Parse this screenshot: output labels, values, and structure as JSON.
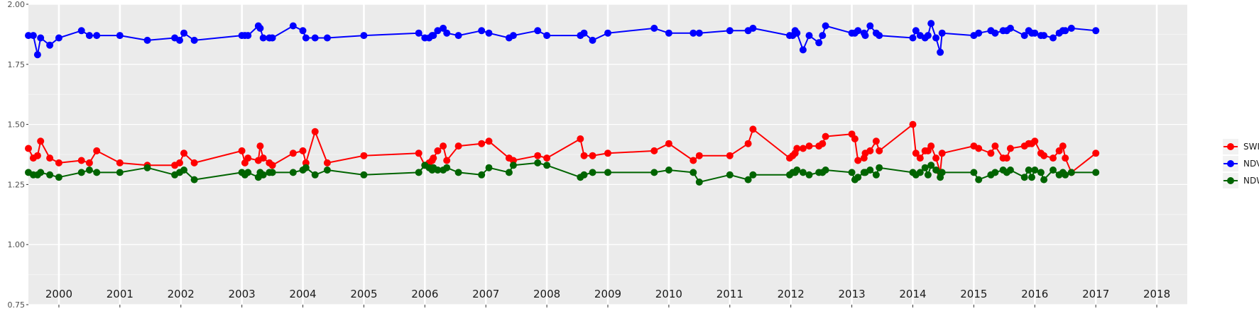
{
  "chart_data": {
    "type": "line",
    "title": "",
    "xlabel": "",
    "ylabel": "",
    "xlim": [
      1999.5,
      2018.5
    ],
    "ylim": [
      0.75,
      2.0
    ],
    "yticks": [
      0.75,
      1.0,
      1.25,
      1.5,
      1.75,
      2.0
    ],
    "ytick_labels": [
      "0.75",
      "1.00",
      "1.25",
      "1.50",
      "1.75",
      "2.00"
    ],
    "year_labels": [
      "2000",
      "2001",
      "2002",
      "2003",
      "2004",
      "2005",
      "2006",
      "2007",
      "2008",
      "2009",
      "2010",
      "2011",
      "2012",
      "2013",
      "2014",
      "2015",
      "2016",
      "2017",
      "2018"
    ],
    "grid": true,
    "legend_position": "right",
    "series": [
      {
        "name": "SWIR",
        "color": "#ff0000",
        "x": [
          1999.5,
          1999.58,
          1999.65,
          1999.7,
          1999.85,
          2000.0,
          2000.37,
          2000.5,
          2000.62,
          2001.0,
          2001.45,
          2001.9,
          2001.98,
          2002.05,
          2002.22,
          2003.0,
          2003.05,
          2003.1,
          2003.27,
          2003.3,
          2003.35,
          2003.45,
          2003.5,
          2003.84,
          2004.0,
          2004.05,
          2004.2,
          2004.4,
          2005.0,
          2005.9,
          2006.0,
          2006.07,
          2006.12,
          2006.14,
          2006.21,
          2006.3,
          2006.36,
          2006.55,
          2006.93,
          2007.05,
          2007.38,
          2007.45,
          2007.85,
          2008.0,
          2008.55,
          2008.61,
          2008.75,
          2009.0,
          2009.76,
          2010.0,
          2010.4,
          2010.5,
          2011.0,
          2011.3,
          2011.38,
          2011.98,
          2012.03,
          2012.07,
          2012.1,
          2012.2,
          2012.3,
          2012.46,
          2012.52,
          2012.57,
          2013.0,
          2013.05,
          2013.1,
          2013.2,
          2013.22,
          2013.3,
          2013.4,
          2013.45,
          2014.0,
          2014.05,
          2014.12,
          2014.2,
          2014.25,
          2014.3,
          2014.38,
          2014.45,
          2014.48,
          2015.0,
          2015.08,
          2015.28,
          2015.35,
          2015.48,
          2015.54,
          2015.6,
          2015.83,
          2015.9,
          2015.95,
          2016.0,
          2016.1,
          2016.15,
          2016.3,
          2016.4,
          2016.46,
          2016.5,
          2016.6,
          2017.0
        ],
        "values": [
          1.4,
          1.36,
          1.37,
          1.43,
          1.36,
          1.34,
          1.35,
          1.34,
          1.39,
          1.34,
          1.33,
          1.33,
          1.34,
          1.38,
          1.34,
          1.39,
          1.34,
          1.36,
          1.35,
          1.41,
          1.36,
          1.34,
          1.33,
          1.38,
          1.39,
          1.34,
          1.47,
          1.34,
          1.37,
          1.38,
          1.33,
          1.34,
          1.35,
          1.36,
          1.39,
          1.41,
          1.35,
          1.41,
          1.42,
          1.43,
          1.36,
          1.35,
          1.37,
          1.36,
          1.44,
          1.37,
          1.37,
          1.38,
          1.39,
          1.42,
          1.35,
          1.37,
          1.37,
          1.42,
          1.48,
          1.36,
          1.37,
          1.38,
          1.4,
          1.4,
          1.41,
          1.41,
          1.42,
          1.45,
          1.46,
          1.44,
          1.35,
          1.36,
          1.38,
          1.39,
          1.43,
          1.39,
          1.5,
          1.38,
          1.36,
          1.39,
          1.39,
          1.41,
          1.36,
          1.3,
          1.38,
          1.41,
          1.4,
          1.38,
          1.41,
          1.36,
          1.36,
          1.4,
          1.41,
          1.42,
          1.42,
          1.43,
          1.38,
          1.37,
          1.36,
          1.39,
          1.41,
          1.36,
          1.3,
          1.38
        ]
      },
      {
        "name": "NDVI",
        "color": "#0000ff",
        "x": [
          1999.5,
          1999.58,
          1999.65,
          1999.7,
          1999.85,
          2000.0,
          2000.37,
          2000.5,
          2000.62,
          2001.0,
          2001.45,
          2001.9,
          2001.98,
          2002.05,
          2002.22,
          2003.0,
          2003.05,
          2003.1,
          2003.27,
          2003.3,
          2003.35,
          2003.45,
          2003.5,
          2003.84,
          2004.0,
          2004.05,
          2004.2,
          2004.4,
          2005.0,
          2005.9,
          2006.0,
          2006.07,
          2006.12,
          2006.14,
          2006.21,
          2006.3,
          2006.36,
          2006.55,
          2006.93,
          2007.05,
          2007.38,
          2007.45,
          2007.85,
          2008.0,
          2008.55,
          2008.61,
          2008.75,
          2009.0,
          2009.76,
          2010.0,
          2010.4,
          2010.5,
          2011.0,
          2011.3,
          2011.38,
          2011.98,
          2012.03,
          2012.07,
          2012.1,
          2012.2,
          2012.3,
          2012.46,
          2012.52,
          2012.57,
          2013.0,
          2013.05,
          2013.1,
          2013.2,
          2013.22,
          2013.3,
          2013.4,
          2013.45,
          2014.0,
          2014.05,
          2014.12,
          2014.2,
          2014.25,
          2014.3,
          2014.38,
          2014.45,
          2014.48,
          2015.0,
          2015.08,
          2015.28,
          2015.35,
          2015.48,
          2015.54,
          2015.6,
          2015.83,
          2015.9,
          2015.95,
          2016.0,
          2016.1,
          2016.15,
          2016.3,
          2016.4,
          2016.46,
          2016.5,
          2016.6,
          2017.0
        ],
        "values": [
          1.87,
          1.87,
          1.79,
          1.86,
          1.83,
          1.86,
          1.89,
          1.87,
          1.87,
          1.87,
          1.85,
          1.86,
          1.85,
          1.88,
          1.85,
          1.87,
          1.87,
          1.87,
          1.91,
          1.9,
          1.86,
          1.86,
          1.86,
          1.91,
          1.89,
          1.86,
          1.86,
          1.86,
          1.87,
          1.88,
          1.86,
          1.86,
          1.87,
          1.87,
          1.89,
          1.9,
          1.88,
          1.87,
          1.89,
          1.88,
          1.86,
          1.87,
          1.89,
          1.87,
          1.87,
          1.88,
          1.85,
          1.88,
          1.9,
          1.88,
          1.88,
          1.88,
          1.89,
          1.89,
          1.9,
          1.87,
          1.87,
          1.89,
          1.88,
          1.81,
          1.87,
          1.84,
          1.87,
          1.91,
          1.88,
          1.88,
          1.89,
          1.88,
          1.87,
          1.91,
          1.88,
          1.87,
          1.86,
          1.89,
          1.87,
          1.86,
          1.87,
          1.92,
          1.86,
          1.8,
          1.88,
          1.87,
          1.88,
          1.89,
          1.88,
          1.89,
          1.89,
          1.9,
          1.87,
          1.89,
          1.88,
          1.88,
          1.87,
          1.87,
          1.86,
          1.88,
          1.89,
          1.89,
          1.9,
          1.89
        ]
      },
      {
        "name": "NDWI",
        "color": "#006400",
        "x": [
          1999.5,
          1999.58,
          1999.65,
          1999.7,
          1999.85,
          2000.0,
          2000.37,
          2000.5,
          2000.62,
          2001.0,
          2001.45,
          2001.9,
          2001.98,
          2002.05,
          2002.22,
          2003.0,
          2003.05,
          2003.1,
          2003.27,
          2003.3,
          2003.35,
          2003.45,
          2003.5,
          2003.84,
          2004.0,
          2004.05,
          2004.2,
          2004.4,
          2005.0,
          2005.9,
          2006.0,
          2006.07,
          2006.12,
          2006.14,
          2006.21,
          2006.3,
          2006.36,
          2006.55,
          2006.93,
          2007.05,
          2007.38,
          2007.45,
          2007.85,
          2008.0,
          2008.55,
          2008.61,
          2008.75,
          2009.0,
          2009.76,
          2010.0,
          2010.4,
          2010.5,
          2011.0,
          2011.3,
          2011.38,
          2011.98,
          2012.03,
          2012.07,
          2012.1,
          2012.2,
          2012.3,
          2012.46,
          2012.52,
          2012.57,
          2013.0,
          2013.05,
          2013.1,
          2013.2,
          2013.22,
          2013.3,
          2013.4,
          2013.45,
          2014.0,
          2014.05,
          2014.12,
          2014.2,
          2014.25,
          2014.3,
          2014.38,
          2014.45,
          2014.48,
          2015.0,
          2015.08,
          2015.28,
          2015.35,
          2015.48,
          2015.54,
          2015.6,
          2015.83,
          2015.9,
          2015.95,
          2016.0,
          2016.1,
          2016.15,
          2016.3,
          2016.4,
          2016.46,
          2016.5,
          2016.6,
          2017.0
        ],
        "values": [
          1.3,
          1.29,
          1.29,
          1.3,
          1.29,
          1.28,
          1.3,
          1.31,
          1.3,
          1.3,
          1.32,
          1.29,
          1.3,
          1.31,
          1.27,
          1.3,
          1.29,
          1.3,
          1.28,
          1.3,
          1.29,
          1.3,
          1.3,
          1.3,
          1.31,
          1.32,
          1.29,
          1.31,
          1.29,
          1.3,
          1.33,
          1.32,
          1.31,
          1.32,
          1.31,
          1.31,
          1.32,
          1.3,
          1.29,
          1.32,
          1.3,
          1.33,
          1.34,
          1.33,
          1.28,
          1.29,
          1.3,
          1.3,
          1.3,
          1.31,
          1.3,
          1.26,
          1.29,
          1.27,
          1.29,
          1.29,
          1.3,
          1.3,
          1.31,
          1.3,
          1.29,
          1.3,
          1.3,
          1.31,
          1.3,
          1.27,
          1.28,
          1.3,
          1.3,
          1.31,
          1.29,
          1.32,
          1.3,
          1.29,
          1.3,
          1.32,
          1.29,
          1.33,
          1.31,
          1.28,
          1.3,
          1.3,
          1.27,
          1.29,
          1.3,
          1.31,
          1.3,
          1.31,
          1.28,
          1.31,
          1.28,
          1.31,
          1.3,
          1.27,
          1.31,
          1.29,
          1.3,
          1.29,
          1.3,
          1.3
        ]
      }
    ]
  }
}
